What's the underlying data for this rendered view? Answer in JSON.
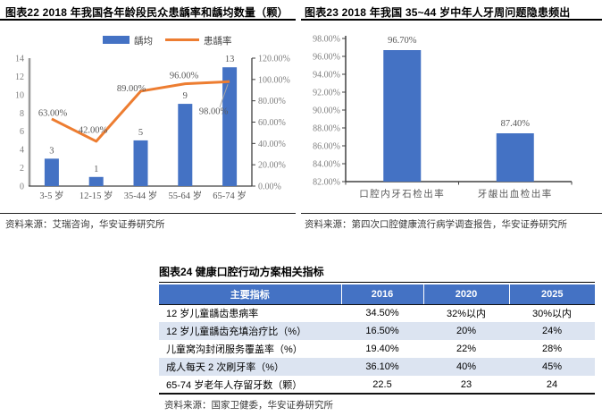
{
  "figure22": {
    "title": "图表22 2018 年我国各年龄段民众患龋率和龋均数量（颗）",
    "source": "资料来源：艾瑞咨询，华安证券研究所"
  },
  "figure23": {
    "title": "图表23 2018 年我国 35~44 岁中年人牙周问题隐患频出",
    "source": "资料来源：第四次口腔健康流行病学调查报告，华安证券研究所"
  },
  "figure24": {
    "title": "图表24 健康口腔行动方案相关指标",
    "source": "资料来源：国家卫健委，华安证券研究所",
    "columns": [
      "主要指标",
      "2016",
      "2020",
      "2025"
    ],
    "rows": [
      [
        "12 岁儿童龋齿患病率",
        "34.50%",
        "32%以内",
        "30%以内"
      ],
      [
        "12 岁儿童龋齿充填治疗比（%）",
        "16.50%",
        "20%",
        "24%"
      ],
      [
        "儿童窝沟封闭服务覆盖率（%）",
        "19.40%",
        "22%",
        "28%"
      ],
      [
        "成人每天 2 次刷牙率（%）",
        "36.10%",
        "40%",
        "45%"
      ],
      [
        "65-74 岁老年人存留牙数（颗）",
        "22.5",
        "23",
        "24"
      ]
    ]
  },
  "colors": {
    "bar_blue": "#4472C4",
    "line_orange": "#ED7D31",
    "table_header_blue": "#4472C4",
    "table_stripe_blue": "#DCE4F1",
    "axis_gray": "#7f7f7f",
    "label_gray": "#595959"
  },
  "chart_data": [
    {
      "id": "figure22",
      "type": "combo",
      "title": "2018 年我国各年龄段民众患龋率和龋均数量（颗）",
      "categories": [
        "3-5 岁",
        "12-15 岁",
        "35-44 岁",
        "55-64 岁",
        "65-74 岁"
      ],
      "series": [
        {
          "name": "龋均",
          "kind": "bar",
          "axis": "left",
          "color": "#4472C4",
          "values": [
            3,
            1,
            5,
            9,
            13
          ],
          "labels": [
            "3",
            "1",
            "5",
            "9",
            "13"
          ]
        },
        {
          "name": "患龋率",
          "kind": "line",
          "axis": "right",
          "color": "#ED7D31",
          "values": [
            63,
            42,
            89,
            96,
            98
          ],
          "labels": [
            "63.00%",
            "42.00%",
            "89.00%",
            "96.00%",
            "98.00%"
          ]
        }
      ],
      "left_axis": {
        "min": 0,
        "max": 14,
        "step": 2,
        "tick_labels": [
          "0",
          "2",
          "4",
          "6",
          "8",
          "10",
          "12",
          "14"
        ]
      },
      "right_axis": {
        "min": 0,
        "max": 120,
        "step": 20,
        "tick_labels": [
          "0.00%",
          "20.00%",
          "40.00%",
          "60.00%",
          "80.00%",
          "100.00%",
          "120.00%"
        ]
      },
      "legend_position": "top",
      "grid": false
    },
    {
      "id": "figure23",
      "type": "bar",
      "title": "2018 年我国 35~44 岁中年人牙周问题隐患频出",
      "categories": [
        "口腔内牙石检出率",
        "牙龈出血检出率"
      ],
      "values": [
        96.7,
        87.4
      ],
      "labels": [
        "96.70%",
        "87.40%"
      ],
      "color": "#4472C4",
      "y_axis": {
        "min": 82,
        "max": 98,
        "step": 2,
        "tick_labels": [
          "82.00%",
          "84.00%",
          "86.00%",
          "88.00%",
          "90.00%",
          "92.00%",
          "94.00%",
          "96.00%",
          "98.00%"
        ]
      },
      "grid": false
    },
    {
      "id": "figure24",
      "type": "table",
      "title": "健康口腔行动方案相关指标",
      "columns": [
        "主要指标",
        "2016",
        "2020",
        "2025"
      ],
      "rows": [
        [
          "12 岁儿童龋齿患病率",
          "34.50%",
          "32%以内",
          "30%以内"
        ],
        [
          "12 岁儿童龋齿充填治疗比（%）",
          "16.50%",
          "20%",
          "24%"
        ],
        [
          "儿童窝沟封闭服务覆盖率（%）",
          "19.40%",
          "22%",
          "28%"
        ],
        [
          "成人每天 2 次刷牙率（%）",
          "36.10%",
          "40%",
          "45%"
        ],
        [
          "65-74 岁老年人存留牙数（颗）",
          "22.5",
          "23",
          "24"
        ]
      ]
    }
  ]
}
